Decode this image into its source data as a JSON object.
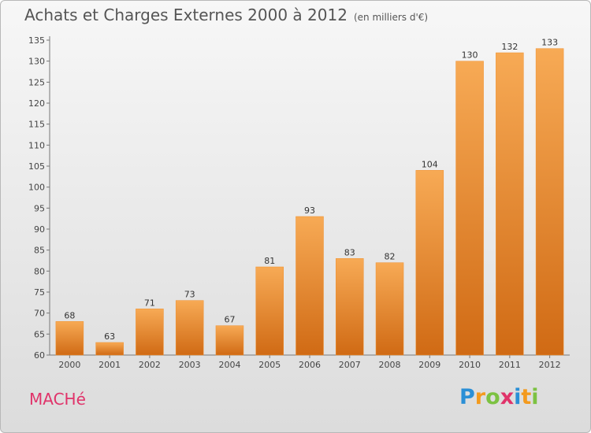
{
  "header": {
    "title": "Achats et Charges Externes 2000 à 2012",
    "subtitle": "(en milliers d'€)"
  },
  "footer": {
    "commune": "MACHé",
    "logo_letters": [
      "P",
      "r",
      "o",
      "x",
      "i",
      "t",
      "i"
    ],
    "logo_colors": [
      "#2a8fd6",
      "#f39a1e",
      "#7cc242",
      "#e0336a",
      "#2a8fd6",
      "#f39a1e",
      "#7cc242"
    ]
  },
  "colors": {
    "bar": "#f0902e",
    "bar_light": "#f7aa55",
    "bar_dark": "#d06a14"
  },
  "chart_data": {
    "type": "bar",
    "title": "Achats et Charges Externes 2000 à 2012",
    "categories": [
      "2000",
      "2001",
      "2002",
      "2003",
      "2004",
      "2005",
      "2006",
      "2007",
      "2008",
      "2009",
      "2010",
      "2011",
      "2012"
    ],
    "values": [
      68,
      63,
      71,
      73,
      67,
      81,
      93,
      83,
      82,
      104,
      130,
      132,
      133
    ],
    "ylim": [
      60,
      135
    ],
    "yticks": [
      60,
      65,
      70,
      75,
      80,
      85,
      90,
      95,
      100,
      105,
      110,
      115,
      120,
      125,
      130,
      135
    ],
    "grid": false,
    "legend": "none"
  }
}
